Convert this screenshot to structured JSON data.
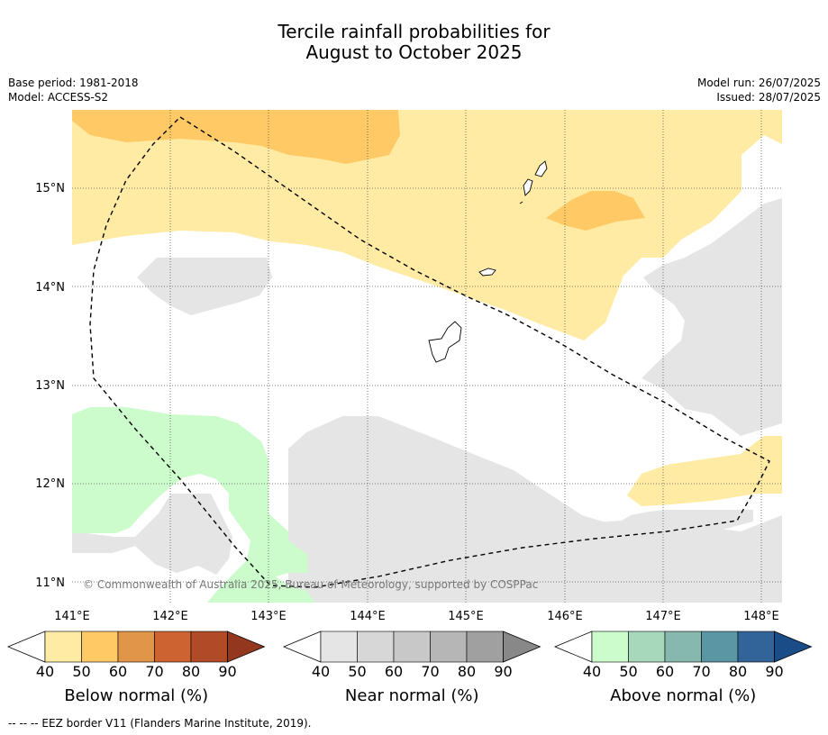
{
  "title": {
    "line1": "Tercile rainfall probabilities for",
    "line2": "August to October 2025"
  },
  "meta": {
    "base_period": "Base period: 1981-2018",
    "model": "Model: ACCESS-S2",
    "model_run": "Model run: 26/07/2025",
    "issued": "Issued: 28/07/2025"
  },
  "map": {
    "lon_labels": [
      "141°E",
      "142°E",
      "143°E",
      "144°E",
      "145°E",
      "146°E",
      "147°E",
      "148°E"
    ],
    "lat_labels": [
      "15°N",
      "14°N",
      "13°N",
      "12°N",
      "11°N"
    ],
    "copyright": "© Commonwealth of Australia 2025, Bureau of Meteorology, supported by COSPPac"
  },
  "colorbars": [
    {
      "name": "below",
      "label": "Below normal (%)",
      "ticks": [
        "40",
        "50",
        "60",
        "70",
        "80",
        "90"
      ],
      "colors": [
        "#ffeba3",
        "#ffc966",
        "#e09549",
        "#cd6330",
        "#b14a26",
        "#93381e"
      ]
    },
    {
      "name": "near",
      "label": "Near normal (%)",
      "ticks": [
        "40",
        "50",
        "60",
        "70",
        "80",
        "90"
      ],
      "colors": [
        "#e5e5e5",
        "#d7d7d7",
        "#c8c8c8",
        "#b6b6b6",
        "#a0a0a0",
        "#888888"
      ]
    },
    {
      "name": "above",
      "label": "Above normal (%)",
      "ticks": [
        "40",
        "50",
        "60",
        "70",
        "80",
        "90"
      ],
      "colors": [
        "#ccfccc",
        "#a8d8bc",
        "#86b8b0",
        "#5a96a4",
        "#326499",
        "#1a4c88"
      ]
    }
  ],
  "footer": "--  --  -- EEZ border V11 (Flanders Marine Institute, 2019)."
}
